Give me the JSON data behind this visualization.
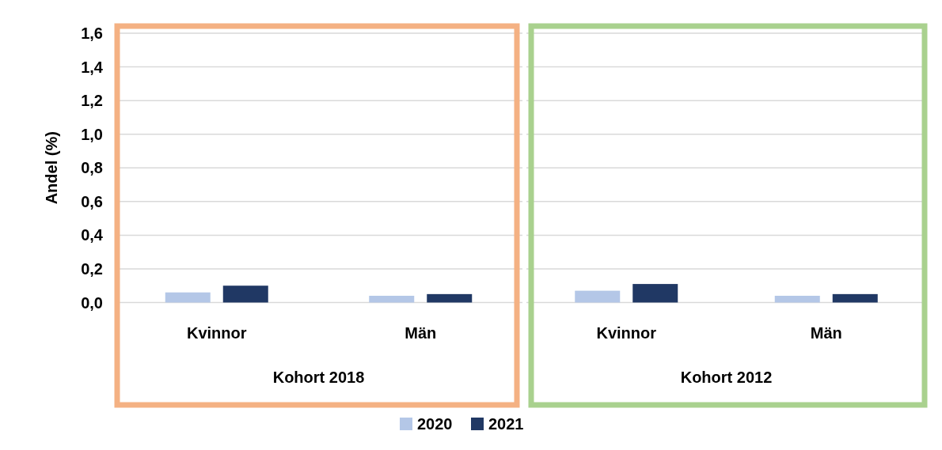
{
  "chart_data": [
    {
      "type": "bar",
      "categories": [
        "Kvinnor",
        "Män"
      ],
      "xlabel": "Kohort 2018",
      "ylabel": "Andel (%)",
      "ylim": [
        0,
        1.6
      ],
      "yticks": [
        {
          "value": 0,
          "label": "0,0"
        },
        {
          "value": 0.2,
          "label": "0,2"
        },
        {
          "value": 0.4,
          "label": "0,4"
        },
        {
          "value": 0.6,
          "label": "0,6"
        },
        {
          "value": 0.8,
          "label": "0,8"
        },
        {
          "value": 1.0,
          "label": "1,0"
        },
        {
          "value": 1.2,
          "label": "1,2"
        },
        {
          "value": 1.4,
          "label": "1,4"
        },
        {
          "value": 1.6,
          "label": "1,6"
        }
      ],
      "grid": "y",
      "legend": "bottom",
      "series": [
        {
          "name": "2020",
          "color": "#b4c7e7",
          "values": [
            0.06,
            0.04
          ]
        },
        {
          "name": "2021",
          "color": "#203864",
          "values": [
            0.1,
            0.05
          ]
        }
      ]
    },
    {
      "type": "bar",
      "categories": [
        "Kvinnor",
        "Män"
      ],
      "xlabel": "Kohort 2012",
      "ylim": [
        0,
        1.6
      ],
      "yticks": [
        {
          "value": 0,
          "label": null
        },
        {
          "value": 0.2,
          "label": null
        },
        {
          "value": 0.4,
          "label": null
        },
        {
          "value": 0.6,
          "label": null
        },
        {
          "value": 0.8,
          "label": null
        },
        {
          "value": 1.0,
          "label": null
        },
        {
          "value": 1.2,
          "label": null
        },
        {
          "value": 1.4,
          "label": null
        },
        {
          "value": 1.6,
          "label": null
        }
      ],
      "grid": "y",
      "tick_labels": "x",
      "series": [
        {
          "color": "#b4c7e7",
          "values": [
            0.07,
            0.04
          ]
        },
        {
          "color": "#203864",
          "values": [
            0.11,
            0.05
          ]
        }
      ]
    }
  ]
}
